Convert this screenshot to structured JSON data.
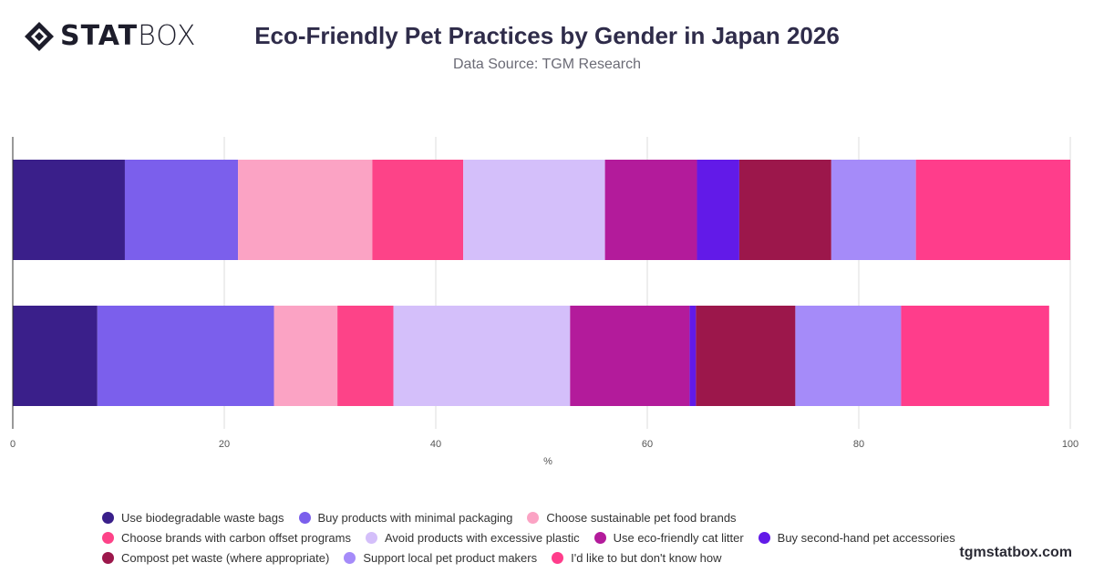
{
  "header": {
    "logo_text_bold": "STAT",
    "logo_text_light": "BOX",
    "title": "Eco-Friendly Pet Practices by Gender in Japan 2026",
    "subtitle": "Data Source: TGM Research"
  },
  "footer": {
    "watermark": "tgmstatbox.com"
  },
  "chart_data": {
    "type": "bar",
    "orientation": "horizontal",
    "stacked": true,
    "categories": [
      "",
      ""
    ],
    "xlabel": "%",
    "ylabel": "",
    "xlim": [
      0,
      100
    ],
    "xticks": [
      0,
      20,
      40,
      60,
      80,
      100
    ],
    "grid": true,
    "legend_position": "bottom",
    "series": [
      {
        "name": "Use biodegradable waste bags",
        "color": "#3a1f8a",
        "values": [
          10.6,
          8.0
        ]
      },
      {
        "name": "Buy products with minimal packaging",
        "color": "#7b5fec",
        "values": [
          10.7,
          16.7
        ]
      },
      {
        "name": "Choose sustainable pet food brands",
        "color": "#fba3c4",
        "values": [
          12.7,
          6.0
        ]
      },
      {
        "name": "Choose brands with carbon offset programs",
        "color": "#fd4388",
        "values": [
          8.6,
          5.3
        ]
      },
      {
        "name": "Avoid products with excessive plastic",
        "color": "#d4bffa",
        "values": [
          13.4,
          16.7
        ]
      },
      {
        "name": "Use eco-friendly cat litter",
        "color": "#b31b9b",
        "values": [
          8.7,
          11.3
        ]
      },
      {
        "name": "Buy second-hand pet accessories",
        "color": "#621ae8",
        "values": [
          4.0,
          0.6
        ]
      },
      {
        "name": "Compost pet waste (where appropriate)",
        "color": "#9c174b",
        "values": [
          8.7,
          9.4
        ]
      },
      {
        "name": "Support local pet product makers",
        "color": "#a58bf9",
        "values": [
          8.0,
          10.0
        ]
      },
      {
        "name": "I'd like to but don't know how",
        "color": "#ff3d8b",
        "values": [
          14.6,
          14.0
        ]
      }
    ]
  }
}
